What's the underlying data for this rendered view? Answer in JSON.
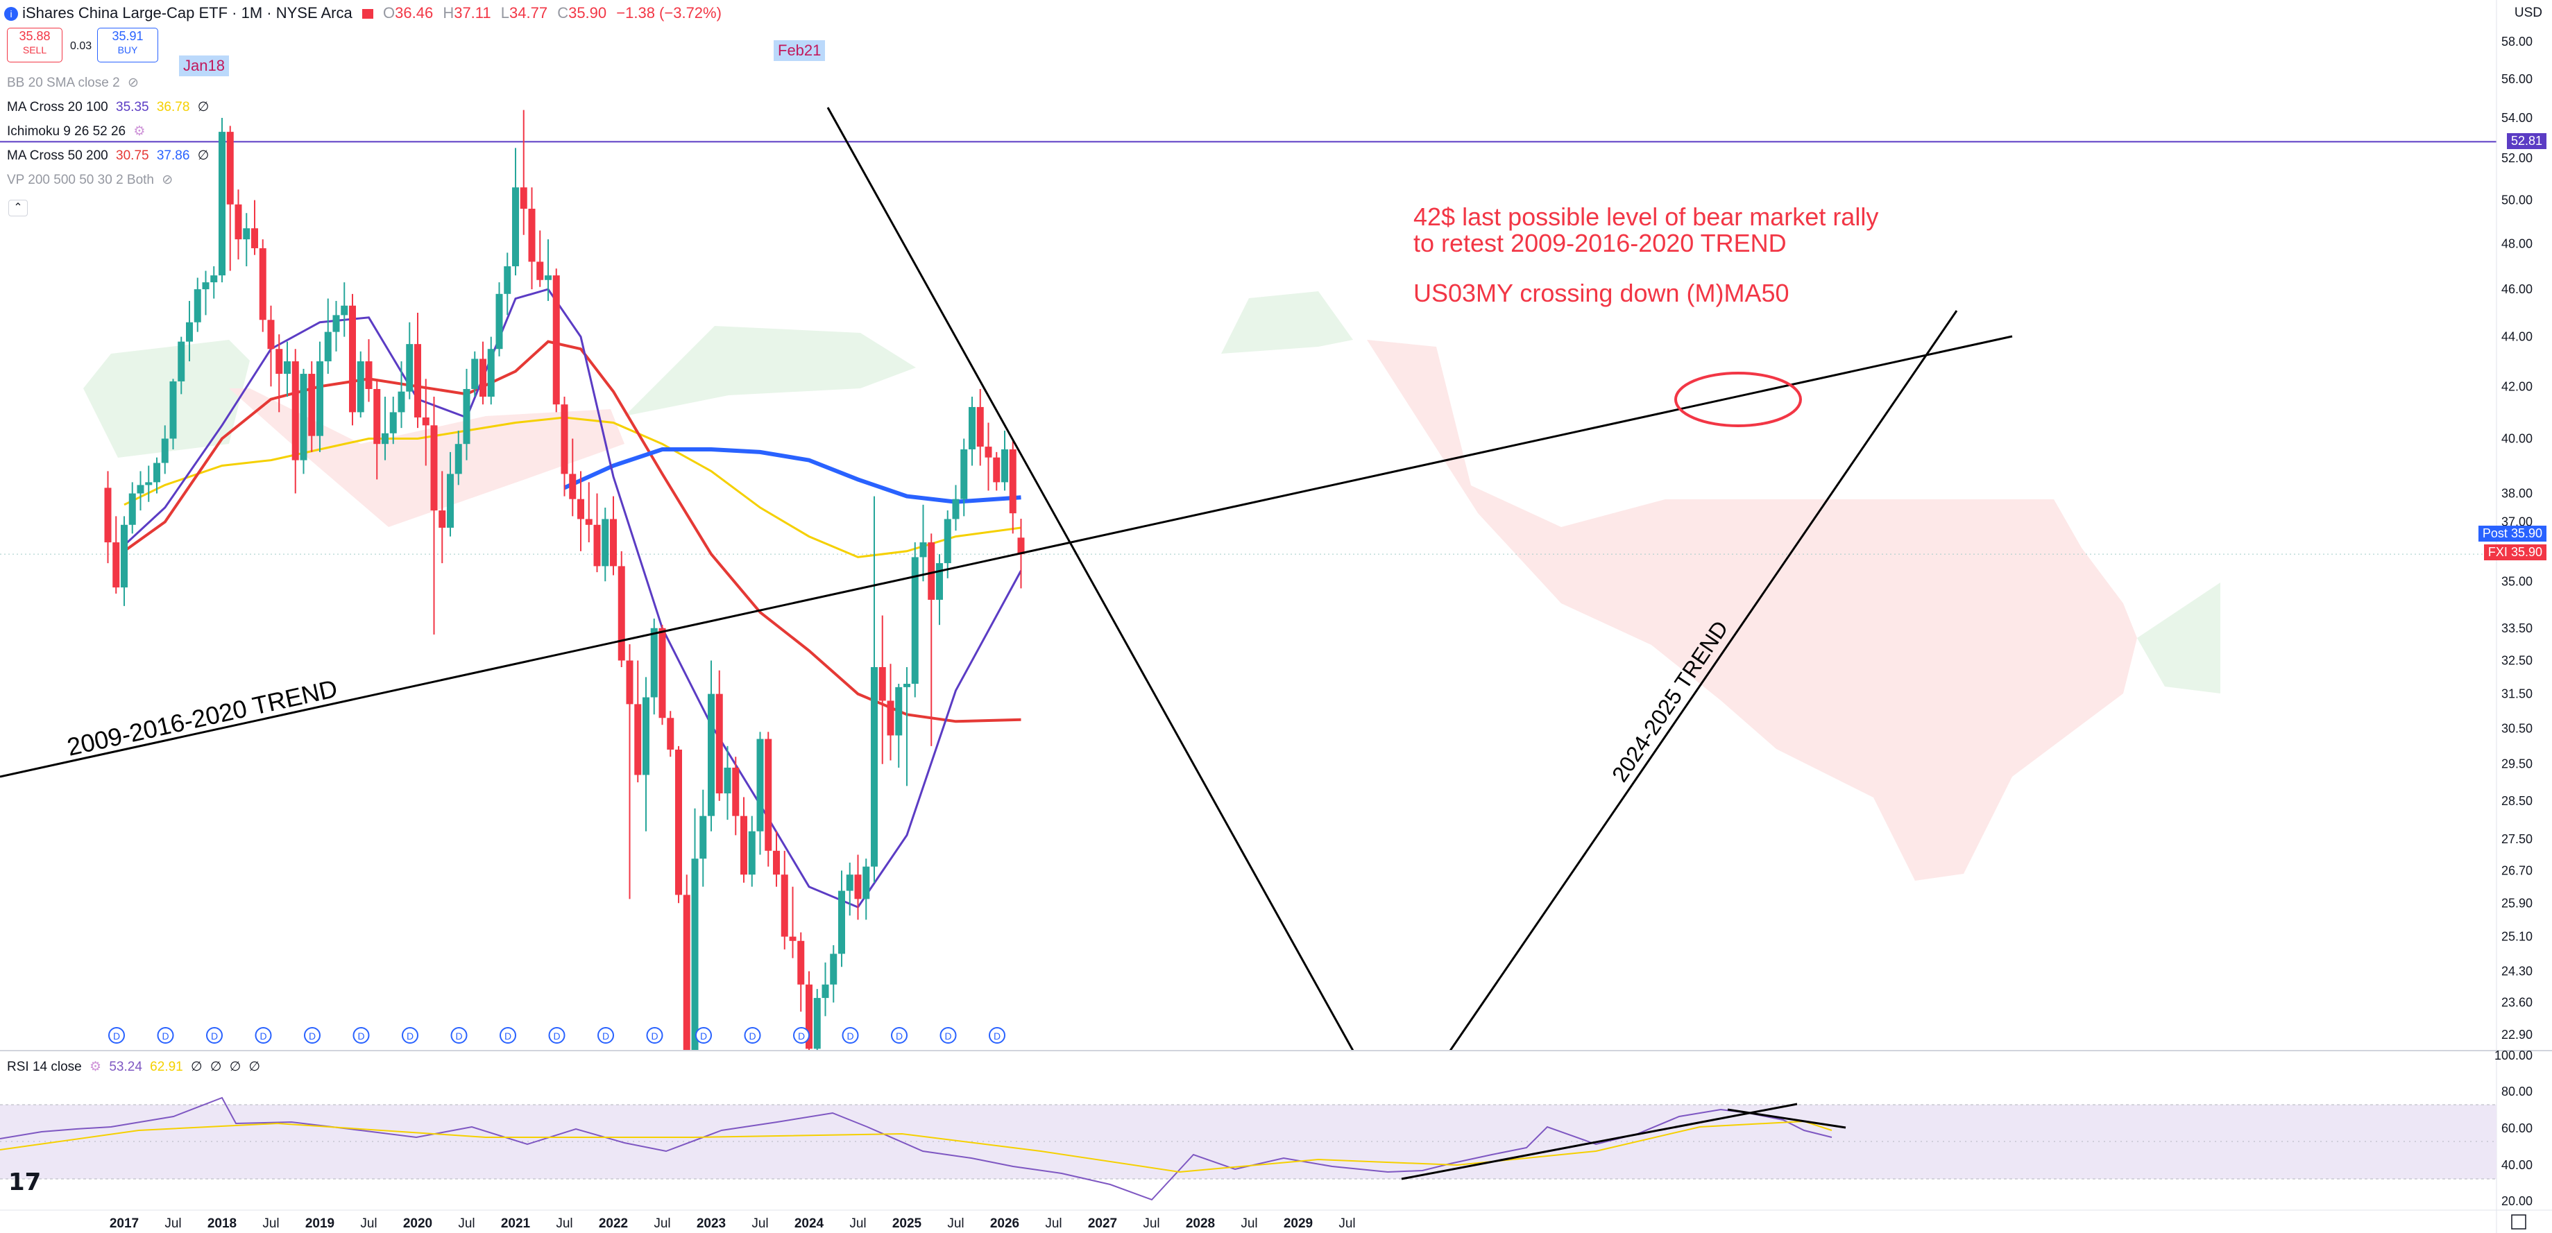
{
  "header": {
    "symbol_name": "iShares China Large-Cap ETF · 1M · NYSE Arca",
    "o_label": "O",
    "o_value": "36.46",
    "h_label": "H",
    "h_value": "37.11",
    "l_label": "L",
    "l_value": "34.77",
    "c_label": "C",
    "c_value": "35.90",
    "change": "−1.38 (−3.72%)",
    "currency": "USD"
  },
  "trade": {
    "sell_price": "35.88",
    "sell_label": "SELL",
    "spread": "0.03",
    "buy_price": "35.91",
    "buy_label": "BUY"
  },
  "indicators": [
    {
      "name": "BB 20 SMA close 2",
      "values": []
    },
    {
      "name": "MA Cross 20 100",
      "values": [
        "35.35",
        "36.78",
        "∅"
      ]
    },
    {
      "name": "Ichimoku 9 26 52 26",
      "values": []
    },
    {
      "name": "MA Cross 50 200",
      "values": [
        "30.75",
        "37.86",
        "∅"
      ]
    },
    {
      "name": "VP 200 500 50 30 2 Both",
      "values": []
    }
  ],
  "events": [
    "Jan18",
    "Feb21"
  ],
  "annotations": {
    "line1": "42$ last possible level of bear market rally",
    "line2": "to retest 2009-2016-2020 TREND",
    "line3": "US03MY crossing down (M)MA50",
    "trend_long": "2009-2016-2020 TREND",
    "trend_up": "2024-2025 TREND"
  },
  "price_tags": {
    "hline": "52.81",
    "post_label": "Post",
    "post_value": "35.90",
    "sym_label": "FXI",
    "sym_value": "35.90"
  },
  "rsi": {
    "name": "RSI 14 close",
    "values": [
      "53.24",
      "62.91",
      "∅",
      "∅",
      "∅",
      "∅"
    ]
  },
  "colors": {
    "up": "#26a69a",
    "down": "#f23645",
    "ma20": "#5b3cc4",
    "ma100": "#f5d000",
    "ma50": "#e53935",
    "ma200": "#2962ff",
    "hline": "#5b3cc4",
    "rsi": "#7e57c2",
    "rsi_ma": "#f5d000",
    "annotation": "#f23645"
  },
  "chart_data": {
    "type": "candlestick",
    "title": "iShares China Large-Cap ETF · 1M · NYSE Arca",
    "y_axis_ticks": [
      58.0,
      56.0,
      54.0,
      52.0,
      50.0,
      48.0,
      46.0,
      44.0,
      42.0,
      40.0,
      38.0,
      37.0,
      35.0,
      33.5,
      32.5,
      31.5,
      30.5,
      29.5,
      28.5,
      27.5,
      26.7,
      25.9,
      25.1,
      24.3,
      23.6,
      22.9
    ],
    "y_axis_tick_labels": [
      "58.00",
      "56.00",
      "54.00",
      "52.00",
      "50.00",
      "48.00",
      "46.00",
      "44.00",
      "42.00",
      "40.00",
      "38.00",
      "37.00",
      "35.00",
      "33.50",
      "32.50",
      "31.50",
      "30.50",
      "29.50",
      "28.50",
      "27.50",
      "26.70",
      "25.90",
      "25.10",
      "24.30",
      "23.60",
      "22.90"
    ],
    "x_axis_labels": [
      "2017",
      "Jul",
      "2018",
      "Jul",
      "2019",
      "Jul",
      "2020",
      "Jul",
      "2021",
      "Jul",
      "2022",
      "Jul",
      "2023",
      "Jul",
      "2024",
      "Jul",
      "2025",
      "Jul",
      "2026",
      "Jul",
      "2027",
      "Jul",
      "2028",
      "Jul",
      "2029",
      "Jul"
    ],
    "rsi_axis_ticks": [
      "100.00",
      "80.00",
      "60.00",
      "40.00",
      "20.00"
    ],
    "scale": "log",
    "horizontal_line": 52.81,
    "candles": [
      {
        "t": "2016-11",
        "o": 38.2,
        "h": 38.8,
        "l": 35.6,
        "c": 36.3
      },
      {
        "t": "2016-12",
        "o": 36.3,
        "h": 37.2,
        "l": 34.6,
        "c": 34.8
      },
      {
        "t": "2017-01",
        "o": 34.8,
        "h": 37.2,
        "l": 34.2,
        "c": 36.9
      },
      {
        "t": "2017-02",
        "o": 36.9,
        "h": 38.4,
        "l": 36.6,
        "c": 38.0
      },
      {
        "t": "2017-03",
        "o": 38.0,
        "h": 38.8,
        "l": 37.4,
        "c": 38.3
      },
      {
        "t": "2017-04",
        "o": 38.3,
        "h": 39.0,
        "l": 37.7,
        "c": 38.4
      },
      {
        "t": "2017-05",
        "o": 38.4,
        "h": 39.3,
        "l": 38.0,
        "c": 39.1
      },
      {
        "t": "2017-06",
        "o": 39.1,
        "h": 40.5,
        "l": 38.7,
        "c": 40.0
      },
      {
        "t": "2017-07",
        "o": 40.0,
        "h": 42.3,
        "l": 39.6,
        "c": 42.2
      },
      {
        "t": "2017-08",
        "o": 42.2,
        "h": 44.0,
        "l": 41.7,
        "c": 43.8
      },
      {
        "t": "2017-09",
        "o": 43.8,
        "h": 45.5,
        "l": 43.0,
        "c": 44.6
      },
      {
        "t": "2017-10",
        "o": 44.6,
        "h": 46.5,
        "l": 44.2,
        "c": 46.0
      },
      {
        "t": "2017-11",
        "o": 46.0,
        "h": 46.8,
        "l": 44.9,
        "c": 46.3
      },
      {
        "t": "2017-12",
        "o": 46.3,
        "h": 47.0,
        "l": 45.6,
        "c": 46.6
      },
      {
        "t": "2018-01",
        "o": 46.6,
        "h": 54.0,
        "l": 46.3,
        "c": 53.3
      },
      {
        "t": "2018-02",
        "o": 53.3,
        "h": 53.6,
        "l": 46.8,
        "c": 49.8
      },
      {
        "t": "2018-03",
        "o": 49.8,
        "h": 50.5,
        "l": 47.3,
        "c": 48.2
      },
      {
        "t": "2018-04",
        "o": 48.2,
        "h": 49.4,
        "l": 47.0,
        "c": 48.7
      },
      {
        "t": "2018-05",
        "o": 48.7,
        "h": 50.0,
        "l": 47.5,
        "c": 47.8
      },
      {
        "t": "2018-06",
        "o": 47.8,
        "h": 48.2,
        "l": 44.2,
        "c": 44.7
      },
      {
        "t": "2018-07",
        "o": 44.7,
        "h": 45.3,
        "l": 42.0,
        "c": 43.5
      },
      {
        "t": "2018-08",
        "o": 43.5,
        "h": 44.1,
        "l": 41.0,
        "c": 42.5
      },
      {
        "t": "2018-09",
        "o": 42.5,
        "h": 43.8,
        "l": 41.6,
        "c": 43.0
      },
      {
        "t": "2018-10",
        "o": 43.0,
        "h": 43.5,
        "l": 38.0,
        "c": 39.2
      },
      {
        "t": "2018-11",
        "o": 39.2,
        "h": 42.7,
        "l": 38.7,
        "c": 42.5
      },
      {
        "t": "2018-12",
        "o": 42.5,
        "h": 43.0,
        "l": 39.5,
        "c": 40.1
      },
      {
        "t": "2019-01",
        "o": 40.1,
        "h": 43.8,
        "l": 39.5,
        "c": 43.0
      },
      {
        "t": "2019-02",
        "o": 43.0,
        "h": 45.6,
        "l": 42.5,
        "c": 44.2
      },
      {
        "t": "2019-03",
        "o": 44.2,
        "h": 45.5,
        "l": 43.4,
        "c": 44.9
      },
      {
        "t": "2019-04",
        "o": 44.9,
        "h": 46.3,
        "l": 44.0,
        "c": 45.3
      },
      {
        "t": "2019-05",
        "o": 45.3,
        "h": 45.8,
        "l": 40.5,
        "c": 41.0
      },
      {
        "t": "2019-06",
        "o": 41.0,
        "h": 43.4,
        "l": 40.8,
        "c": 43.0
      },
      {
        "t": "2019-07",
        "o": 43.0,
        "h": 43.9,
        "l": 41.4,
        "c": 41.9
      },
      {
        "t": "2019-08",
        "o": 41.9,
        "h": 42.2,
        "l": 38.5,
        "c": 39.8
      },
      {
        "t": "2019-09",
        "o": 39.8,
        "h": 41.6,
        "l": 39.2,
        "c": 40.2
      },
      {
        "t": "2019-10",
        "o": 40.2,
        "h": 41.6,
        "l": 39.8,
        "c": 41.0
      },
      {
        "t": "2019-11",
        "o": 41.0,
        "h": 43.0,
        "l": 40.4,
        "c": 41.8
      },
      {
        "t": "2019-12",
        "o": 41.8,
        "h": 44.6,
        "l": 41.5,
        "c": 43.7
      },
      {
        "t": "2020-01",
        "o": 43.7,
        "h": 45.0,
        "l": 40.4,
        "c": 40.8
      },
      {
        "t": "2020-02",
        "o": 40.8,
        "h": 42.3,
        "l": 39.0,
        "c": 40.5
      },
      {
        "t": "2020-03",
        "o": 40.5,
        "h": 41.6,
        "l": 33.3,
        "c": 37.4
      },
      {
        "t": "2020-04",
        "o": 37.4,
        "h": 38.8,
        "l": 35.6,
        "c": 36.8
      },
      {
        "t": "2020-05",
        "o": 36.8,
        "h": 39.5,
        "l": 36.5,
        "c": 38.7
      },
      {
        "t": "2020-06",
        "o": 38.7,
        "h": 40.3,
        "l": 38.3,
        "c": 39.8
      },
      {
        "t": "2020-07",
        "o": 39.8,
        "h": 42.7,
        "l": 39.2,
        "c": 41.9
      },
      {
        "t": "2020-08",
        "o": 41.9,
        "h": 43.4,
        "l": 41.6,
        "c": 43.1
      },
      {
        "t": "2020-09",
        "o": 43.1,
        "h": 43.8,
        "l": 41.3,
        "c": 41.6
      },
      {
        "t": "2020-10",
        "o": 41.6,
        "h": 44.0,
        "l": 41.3,
        "c": 43.5
      },
      {
        "t": "2020-11",
        "o": 43.5,
        "h": 46.3,
        "l": 43.2,
        "c": 45.8
      },
      {
        "t": "2020-12",
        "o": 45.8,
        "h": 47.6,
        "l": 44.9,
        "c": 47.0
      },
      {
        "t": "2021-01",
        "o": 47.0,
        "h": 52.5,
        "l": 46.6,
        "c": 50.6
      },
      {
        "t": "2021-02",
        "o": 50.6,
        "h": 54.4,
        "l": 48.4,
        "c": 49.6
      },
      {
        "t": "2021-03",
        "o": 49.6,
        "h": 50.6,
        "l": 46.0,
        "c": 47.2
      },
      {
        "t": "2021-04",
        "o": 47.2,
        "h": 48.6,
        "l": 46.1,
        "c": 46.4
      },
      {
        "t": "2021-05",
        "o": 46.4,
        "h": 48.2,
        "l": 45.5,
        "c": 46.6
      },
      {
        "t": "2021-06",
        "o": 46.6,
        "h": 46.9,
        "l": 41.0,
        "c": 41.3
      },
      {
        "t": "2021-07",
        "o": 41.3,
        "h": 41.6,
        "l": 37.9,
        "c": 38.7
      },
      {
        "t": "2021-08",
        "o": 38.7,
        "h": 40.0,
        "l": 37.2,
        "c": 37.8
      },
      {
        "t": "2021-09",
        "o": 37.8,
        "h": 38.8,
        "l": 36.0,
        "c": 37.1
      },
      {
        "t": "2021-10",
        "o": 37.1,
        "h": 38.4,
        "l": 36.3,
        "c": 36.9
      },
      {
        "t": "2021-11",
        "o": 36.9,
        "h": 38.0,
        "l": 35.3,
        "c": 35.5
      },
      {
        "t": "2021-12",
        "o": 35.5,
        "h": 37.5,
        "l": 35.0,
        "c": 37.1
      },
      {
        "t": "2022-01",
        "o": 37.1,
        "h": 37.9,
        "l": 35.2,
        "c": 35.5
      },
      {
        "t": "2022-02",
        "o": 35.5,
        "h": 36.0,
        "l": 32.3,
        "c": 32.5
      },
      {
        "t": "2022-03",
        "o": 32.5,
        "h": 33.0,
        "l": 26.0,
        "c": 31.2
      },
      {
        "t": "2022-04",
        "o": 31.2,
        "h": 32.5,
        "l": 29.0,
        "c": 29.2
      },
      {
        "t": "2022-05",
        "o": 29.2,
        "h": 32.0,
        "l": 27.7,
        "c": 31.4
      },
      {
        "t": "2022-06",
        "o": 31.4,
        "h": 33.8,
        "l": 30.9,
        "c": 33.5
      },
      {
        "t": "2022-07",
        "o": 33.5,
        "h": 33.6,
        "l": 30.6,
        "c": 30.8
      },
      {
        "t": "2022-08",
        "o": 30.8,
        "h": 31.0,
        "l": 29.7,
        "c": 29.9
      },
      {
        "t": "2022-09",
        "o": 29.9,
        "h": 30.0,
        "l": 25.9,
        "c": 26.1
      },
      {
        "t": "2022-10",
        "o": 26.1,
        "h": 26.6,
        "l": 21.4,
        "c": 22.2
      },
      {
        "t": "2022-11",
        "o": 22.2,
        "h": 28.3,
        "l": 21.8,
        "c": 27.0
      },
      {
        "t": "2022-12",
        "o": 27.0,
        "h": 28.8,
        "l": 26.3,
        "c": 28.1
      },
      {
        "t": "2023-01",
        "o": 28.1,
        "h": 32.5,
        "l": 27.7,
        "c": 31.5
      },
      {
        "t": "2023-02",
        "o": 31.5,
        "h": 32.2,
        "l": 28.5,
        "c": 28.7
      },
      {
        "t": "2023-03",
        "o": 28.7,
        "h": 30.0,
        "l": 28.0,
        "c": 29.4
      },
      {
        "t": "2023-04",
        "o": 29.4,
        "h": 29.7,
        "l": 27.6,
        "c": 28.1
      },
      {
        "t": "2023-05",
        "o": 28.1,
        "h": 28.6,
        "l": 26.4,
        "c": 26.6
      },
      {
        "t": "2023-06",
        "o": 26.6,
        "h": 28.1,
        "l": 26.3,
        "c": 27.7
      },
      {
        "t": "2023-07",
        "o": 27.7,
        "h": 30.4,
        "l": 27.1,
        "c": 30.2
      },
      {
        "t": "2023-08",
        "o": 30.2,
        "h": 30.4,
        "l": 26.8,
        "c": 27.2
      },
      {
        "t": "2023-09",
        "o": 27.2,
        "h": 27.7,
        "l": 26.3,
        "c": 26.6
      },
      {
        "t": "2023-10",
        "o": 26.6,
        "h": 27.2,
        "l": 24.8,
        "c": 25.1
      },
      {
        "t": "2023-11",
        "o": 25.1,
        "h": 26.3,
        "l": 24.6,
        "c": 25.0
      },
      {
        "t": "2023-12",
        "o": 25.0,
        "h": 25.2,
        "l": 23.4,
        "c": 24.0
      },
      {
        "t": "2024-01",
        "o": 24.0,
        "h": 24.3,
        "l": 21.4,
        "c": 22.6
      },
      {
        "t": "2024-02",
        "o": 22.6,
        "h": 23.9,
        "l": 22.1,
        "c": 23.7
      },
      {
        "t": "2024-03",
        "o": 23.7,
        "h": 24.5,
        "l": 23.3,
        "c": 24.0
      },
      {
        "t": "2024-04",
        "o": 24.0,
        "h": 24.9,
        "l": 23.6,
        "c": 24.7
      },
      {
        "t": "2024-05",
        "o": 24.7,
        "h": 26.7,
        "l": 24.4,
        "c": 26.2
      },
      {
        "t": "2024-06",
        "o": 26.2,
        "h": 26.9,
        "l": 25.6,
        "c": 26.6
      },
      {
        "t": "2024-07",
        "o": 26.6,
        "h": 27.1,
        "l": 25.5,
        "c": 26.0
      },
      {
        "t": "2024-08",
        "o": 26.0,
        "h": 27.0,
        "l": 25.5,
        "c": 26.8
      },
      {
        "t": "2024-09",
        "o": 26.8,
        "h": 37.9,
        "l": 26.4,
        "c": 32.3
      },
      {
        "t": "2024-10",
        "o": 32.3,
        "h": 33.9,
        "l": 29.5,
        "c": 31.3
      },
      {
        "t": "2024-11",
        "o": 31.3,
        "h": 32.4,
        "l": 29.6,
        "c": 30.3
      },
      {
        "t": "2024-12",
        "o": 30.3,
        "h": 31.8,
        "l": 29.4,
        "c": 31.7
      },
      {
        "t": "2025-01",
        "o": 31.7,
        "h": 32.3,
        "l": 28.9,
        "c": 31.8
      },
      {
        "t": "2025-02",
        "o": 31.8,
        "h": 36.3,
        "l": 31.4,
        "c": 35.8
      },
      {
        "t": "2025-03",
        "o": 35.8,
        "h": 37.6,
        "l": 35.0,
        "c": 36.3
      },
      {
        "t": "2025-04",
        "o": 36.3,
        "h": 36.6,
        "l": 30.0,
        "c": 34.4
      },
      {
        "t": "2025-05",
        "o": 34.4,
        "h": 35.9,
        "l": 33.6,
        "c": 35.6
      },
      {
        "t": "2025-06",
        "o": 35.6,
        "h": 37.4,
        "l": 35.1,
        "c": 37.1
      },
      {
        "t": "2025-07",
        "o": 37.1,
        "h": 38.3,
        "l": 36.7,
        "c": 37.8
      },
      {
        "t": "2025-08",
        "o": 37.8,
        "h": 40.0,
        "l": 37.2,
        "c": 39.6
      },
      {
        "t": "2025-09",
        "o": 39.6,
        "h": 41.6,
        "l": 39.0,
        "c": 41.2
      },
      {
        "t": "2025-10",
        "o": 41.2,
        "h": 41.9,
        "l": 39.0,
        "c": 39.7
      },
      {
        "t": "2025-11",
        "o": 39.7,
        "h": 40.6,
        "l": 38.1,
        "c": 39.3
      },
      {
        "t": "2025-12",
        "o": 39.3,
        "h": 39.5,
        "l": 38.1,
        "c": 38.4
      },
      {
        "t": "2026-01",
        "o": 38.4,
        "h": 40.3,
        "l": 38.1,
        "c": 39.6
      },
      {
        "t": "2026-02",
        "o": 39.6,
        "h": 39.9,
        "l": 36.6,
        "c": 37.3
      },
      {
        "t": "2026-03",
        "o": 36.46,
        "h": 37.11,
        "l": 34.77,
        "c": 35.9
      }
    ]
  }
}
